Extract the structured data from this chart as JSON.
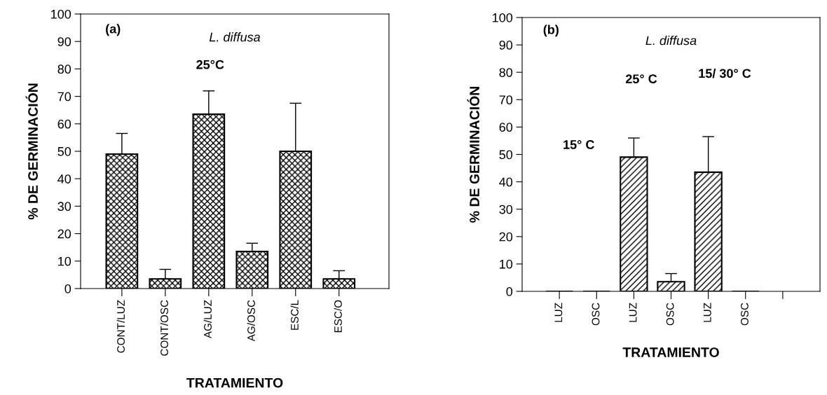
{
  "chart_data": [
    {
      "type": "bar",
      "xlabel": "TRATAMIENTO",
      "ylabel": "% DE GERMINACIÓN",
      "categories": [
        "CONT/LUZ",
        "CONT/OSC",
        "AG/LUZ",
        "AG/OSC",
        "ESC/L",
        "ESC/O"
      ],
      "series": [
        {
          "color": "#000000",
          "values": [
            49,
            3.5,
            63.5,
            13.5,
            50,
            3.5
          ],
          "errors": [
            [
              49,
              56.5
            ],
            [
              3.5,
              7
            ],
            [
              63.5,
              72
            ],
            [
              13.5,
              16.5
            ],
            [
              50,
              67.5
            ],
            [
              3.5,
              6.5
            ]
          ]
        }
      ],
      "ylim": [
        0,
        100
      ],
      "yticks": [
        0,
        10,
        20,
        30,
        40,
        50,
        60,
        70,
        80,
        90,
        100
      ],
      "grid": false,
      "legend": false,
      "annotations": [
        "(a)",
        "L. diffusa",
        "25°C"
      ]
    },
    {
      "type": "bar",
      "xlabel": "TRATAMIENTO",
      "ylabel": "% DE GERMINACIÓN",
      "categories": [
        "LUZ",
        "OSC",
        "LUZ",
        "OSC",
        "LUZ",
        "OSC",
        null
      ],
      "series": [
        {
          "color": "#000000",
          "values": [
            0,
            0,
            49,
            3.5,
            43.5,
            0,
            null
          ],
          "errors": [
            null,
            null,
            [
              49,
              56
            ],
            [
              3.5,
              6.5
            ],
            [
              43.5,
              56.5
            ],
            null,
            null
          ]
        }
      ],
      "ylim": [
        0,
        100
      ],
      "yticks": [
        0,
        10,
        20,
        30,
        40,
        50,
        60,
        70,
        80,
        90,
        100
      ],
      "grid": false,
      "legend": false,
      "annotations": [
        "(b)",
        "L. diffusa",
        "15° C",
        "25° C",
        "15/ 30° C"
      ]
    }
  ]
}
